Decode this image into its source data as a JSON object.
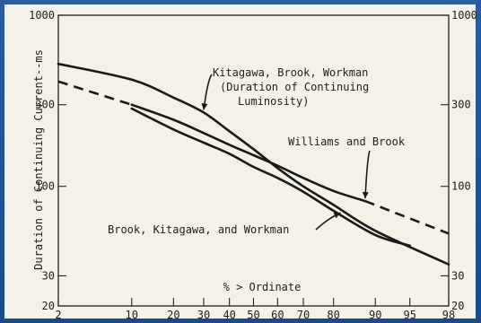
{
  "chart_data": {
    "type": "line",
    "title": "",
    "xlabel": "% > Ordinate",
    "ylabel": "Duration of Continuing Current--ms",
    "x_scale": "probability",
    "y_scale": "log",
    "xlim": [
      2,
      98
    ],
    "ylim": [
      20,
      1000
    ],
    "x_ticks": [
      2,
      10,
      20,
      30,
      40,
      50,
      60,
      70,
      80,
      90,
      95,
      98
    ],
    "y_ticks": [
      20,
      30,
      100,
      300,
      1000
    ],
    "y_ticks_right": [
      20,
      30,
      100,
      300,
      1000
    ],
    "grid": false,
    "series": [
      {
        "name": "Kitagawa, Brook, Workman (Duration of Continuing Luminosity)",
        "style": "solid",
        "points": [
          [
            2,
            520
          ],
          [
            10,
            420
          ],
          [
            20,
            330
          ],
          [
            30,
            270
          ],
          [
            40,
            210
          ],
          [
            50,
            165
          ],
          [
            60,
            128
          ],
          [
            70,
            100
          ],
          [
            80,
            78
          ],
          [
            90,
            55
          ],
          [
            98,
            35
          ]
        ]
      },
      {
        "name": "Williams and Brook",
        "style": "solid-then-dashed",
        "dashed_x_ranges": [
          [
            2,
            10
          ],
          [
            88,
            98
          ]
        ],
        "points": [
          [
            2,
            410
          ],
          [
            10,
            300
          ],
          [
            20,
            245
          ],
          [
            30,
            205
          ],
          [
            40,
            175
          ],
          [
            50,
            152
          ],
          [
            60,
            132
          ],
          [
            70,
            112
          ],
          [
            80,
            94
          ],
          [
            88,
            82
          ],
          [
            98,
            53
          ]
        ]
      },
      {
        "name": "Brook, Kitagawa, and Workman",
        "style": "solid",
        "points": [
          [
            10,
            285
          ],
          [
            20,
            215
          ],
          [
            30,
            180
          ],
          [
            40,
            155
          ],
          [
            50,
            130
          ],
          [
            60,
            112
          ],
          [
            70,
            93
          ],
          [
            80,
            72
          ],
          [
            90,
            52
          ],
          [
            95,
            45
          ]
        ]
      }
    ],
    "annotations": [
      {
        "text_lines": [
          "Kitagawa, Brook, Workman",
          "(Duration of Continuing",
          "Luminosity)"
        ],
        "points_to": 0
      },
      {
        "text_lines": [
          "Williams and Brook"
        ],
        "points_to": 1
      },
      {
        "text_lines": [
          "Brook, Kitagawa, and Workman"
        ],
        "points_to": 2
      }
    ]
  }
}
